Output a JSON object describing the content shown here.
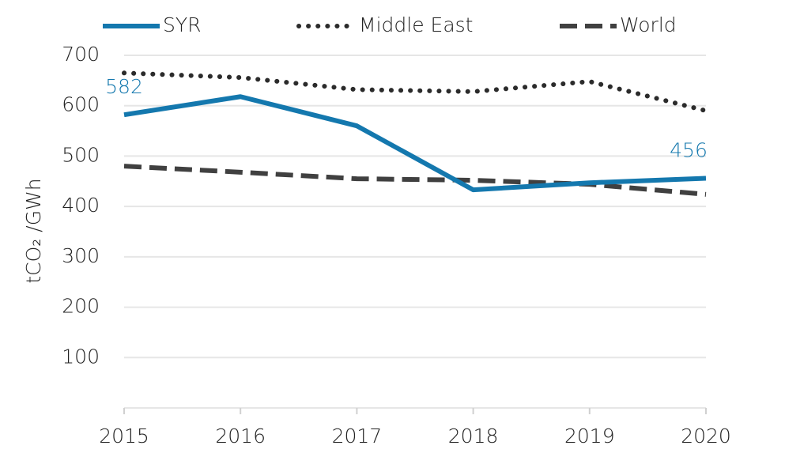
{
  "chart_data": {
    "type": "line",
    "y_label": "tCO₂ /GWh",
    "categories": [
      "2015",
      "2016",
      "2017",
      "2018",
      "2019",
      "2020"
    ],
    "series": [
      {
        "name": "SYR",
        "color": "#1478ae",
        "style": "solid",
        "values": [
          582,
          618,
          560,
          433,
          447,
          456
        ],
        "value_labels": [
          "582",
          null,
          null,
          null,
          null,
          "456"
        ]
      },
      {
        "name": "Middle East",
        "color": "#2b2b2b",
        "style": "dotted",
        "values": [
          665,
          656,
          632,
          628,
          648,
          590
        ]
      },
      {
        "name": "World",
        "color": "#404040",
        "style": "dashed",
        "values": [
          480,
          468,
          455,
          452,
          444,
          424
        ]
      }
    ],
    "ylim": [
      0,
      700
    ],
    "yticks": [
      100,
      200,
      300,
      400,
      500,
      600,
      700
    ],
    "grid": true,
    "legend": "top"
  }
}
